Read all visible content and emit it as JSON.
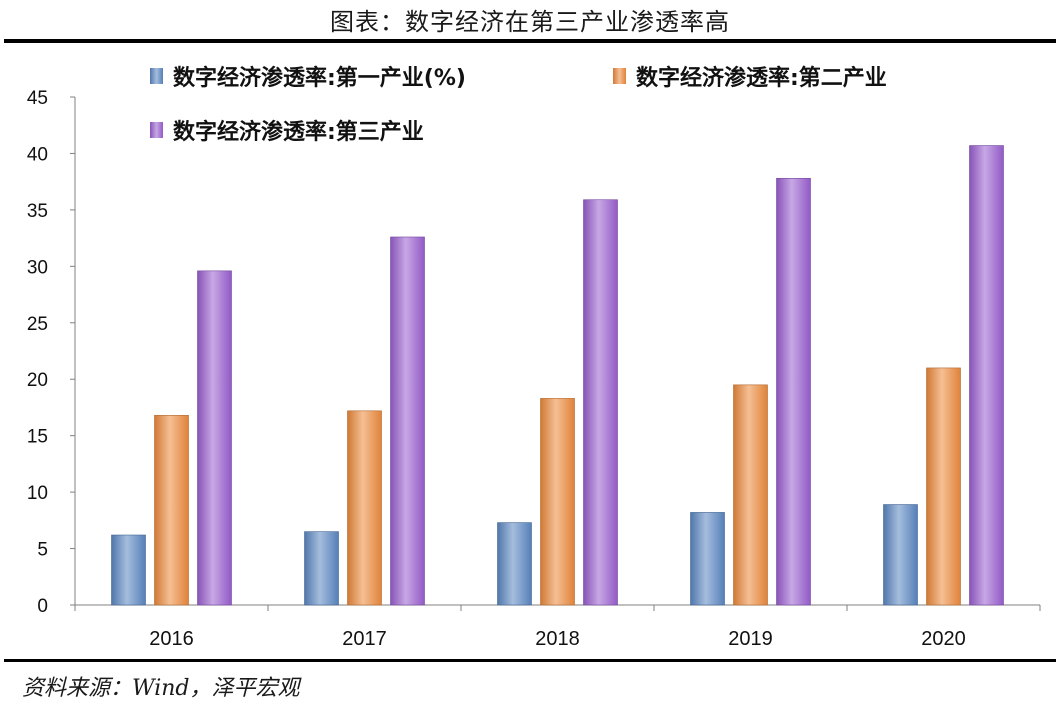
{
  "figure": {
    "title": "图表：数字经济在第三产业渗透率高",
    "source": "资料来源：Wind，泽平宏观"
  },
  "chart_data": {
    "type": "bar",
    "categories": [
      "2016",
      "2017",
      "2018",
      "2019",
      "2020"
    ],
    "series": [
      {
        "name": "数字经济渗透率:第一产业(%)",
        "values": [
          6.2,
          6.5,
          7.3,
          8.2,
          8.9
        ],
        "color": "#5b87c2"
      },
      {
        "name": "数字经济渗透率:第二产业",
        "values": [
          16.8,
          17.2,
          18.3,
          19.5,
          21.0
        ],
        "color": "#ec8a3c"
      },
      {
        "name": "数字经济渗透率:第三产业",
        "values": [
          29.6,
          32.6,
          35.9,
          37.8,
          40.7
        ],
        "color": "#9a5fd0"
      }
    ],
    "ylim": [
      0,
      45
    ],
    "yticks": [
      0,
      5,
      10,
      15,
      20,
      25,
      30,
      35,
      40,
      45
    ],
    "grid": false,
    "legend_position": "top"
  }
}
